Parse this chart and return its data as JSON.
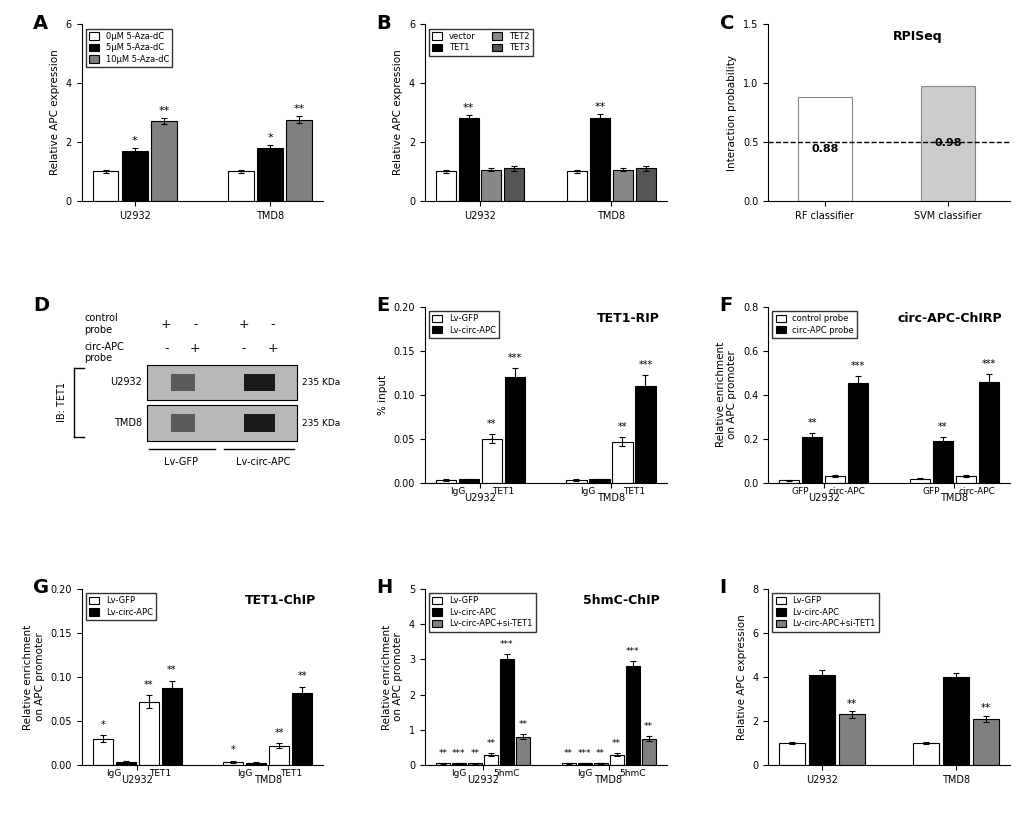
{
  "panelA": {
    "title": "A",
    "ylabel": "Relative APC expression",
    "ylim": [
      0,
      6
    ],
    "yticks": [
      0,
      2,
      4,
      6
    ],
    "groups": [
      "U2932",
      "TMD8"
    ],
    "categories": [
      "0μM 5-Aza-dC",
      "5μM 5-Aza-dC",
      "10μM 5-Aza-dC"
    ],
    "colors": [
      "white",
      "black",
      "#808080"
    ],
    "edgecolor": "black",
    "values": [
      [
        1.0,
        1.7,
        2.7
      ],
      [
        1.0,
        1.8,
        2.75
      ]
    ],
    "errors": [
      [
        0.05,
        0.08,
        0.1
      ],
      [
        0.05,
        0.1,
        0.12
      ]
    ],
    "sig": [
      [
        "",
        "*",
        "**"
      ],
      [
        "",
        "*",
        "**"
      ]
    ]
  },
  "panelB": {
    "title": "B",
    "ylabel": "Relative APC expression",
    "ylim": [
      0,
      6
    ],
    "yticks": [
      0,
      2,
      4,
      6
    ],
    "groups": [
      "U2932",
      "TMD8"
    ],
    "categories": [
      "vector",
      "TET1",
      "TET2",
      "TET3"
    ],
    "colors": [
      "white",
      "black",
      "#888888",
      "#555555"
    ],
    "edgecolor": "black",
    "values": [
      [
        1.0,
        2.8,
        1.05,
        1.1
      ],
      [
        1.0,
        2.8,
        1.05,
        1.1
      ]
    ],
    "errors": [
      [
        0.05,
        0.12,
        0.05,
        0.07
      ],
      [
        0.05,
        0.15,
        0.05,
        0.07
      ]
    ],
    "sig": [
      [
        "",
        "**",
        "",
        ""
      ],
      [
        "",
        "**",
        "",
        ""
      ]
    ]
  },
  "panelC": {
    "title": "C",
    "panel_title": "RPISeq",
    "ylabel": "Interaction probability",
    "ylim": [
      0.0,
      1.5
    ],
    "yticks": [
      0.0,
      0.5,
      1.0,
      1.5
    ],
    "categories": [
      "RF classifier",
      "SVM classifier"
    ],
    "colors": [
      "white",
      "#cccccc"
    ],
    "edgecolor": "#888888",
    "values": [
      0.88,
      0.98
    ],
    "labels": [
      "0.88",
      "0.98"
    ],
    "dashed_line": 0.5
  },
  "panelD": {
    "title": "D",
    "row1_label": "control\nprobe",
    "row2_label": "circ-APC\nprobe",
    "col_symbols_row1": [
      "+",
      "-",
      "+",
      "-"
    ],
    "col_symbols_row2": [
      "-",
      "+",
      "-",
      "+"
    ],
    "cell_line_labels": [
      "U2932",
      "TMD8"
    ],
    "kda_label": "235 KDa",
    "bottom_labels": [
      "Lv-GFP",
      "Lv-circ-APC"
    ],
    "ib_label": "IB: TET1",
    "gel_color": "#b8b8b8",
    "band_color": "#1a1a1a",
    "band_light_color": "#5a5a5a"
  },
  "panelE": {
    "title": "E",
    "panel_title": "TET1-RIP",
    "ylabel": "% input",
    "ylim": [
      0,
      0.2
    ],
    "yticks": [
      0,
      0.05,
      0.1,
      0.15,
      0.2
    ],
    "groups": [
      "U2932",
      "TMD8"
    ],
    "categories": [
      "IgG",
      "TET1"
    ],
    "white_values": [
      [
        0.003,
        0.05
      ],
      [
        0.003,
        0.047
      ]
    ],
    "white_errors": [
      [
        0.001,
        0.005
      ],
      [
        0.001,
        0.005
      ]
    ],
    "black_values": [
      [
        0.004,
        0.12
      ],
      [
        0.004,
        0.11
      ]
    ],
    "black_errors": [
      [
        0.001,
        0.01
      ],
      [
        0.001,
        0.012
      ]
    ],
    "sig_white": [
      [
        "",
        "**"
      ],
      [
        "",
        "**"
      ]
    ],
    "sig_black": [
      [
        "",
        "***"
      ],
      [
        "",
        "***"
      ]
    ],
    "legend": [
      "Lv-GFP",
      "Lv-circ-APC"
    ]
  },
  "panelF": {
    "title": "F",
    "panel_title": "circ-APC-ChIRP",
    "ylabel": "Relative enrichment\non APC promoter",
    "ylim": [
      0,
      0.8
    ],
    "yticks": [
      0,
      0.2,
      0.4,
      0.6,
      0.8
    ],
    "groups": [
      "U2932",
      "TMD8"
    ],
    "categories": [
      "GFP",
      "circ-APC"
    ],
    "white_values": [
      [
        0.012,
        0.033
      ],
      [
        0.02,
        0.033
      ]
    ],
    "white_errors": [
      [
        0.003,
        0.005
      ],
      [
        0.004,
        0.004
      ]
    ],
    "black_values": [
      [
        0.21,
        0.455
      ],
      [
        0.19,
        0.46
      ]
    ],
    "black_errors": [
      [
        0.015,
        0.03
      ],
      [
        0.018,
        0.035
      ]
    ],
    "sig_white": [
      [
        "",
        ""
      ],
      [
        "",
        ""
      ]
    ],
    "sig_black": [
      [
        "**",
        "***"
      ],
      [
        "**",
        "***"
      ]
    ],
    "legend": [
      "control probe",
      "circ-APC probe"
    ]
  },
  "panelG": {
    "title": "G",
    "panel_title": "TET1-ChIP",
    "ylabel": "Relative enrichment\non APC promoter",
    "ylim": [
      0,
      0.2
    ],
    "yticks": [
      0,
      0.05,
      0.1,
      0.15,
      0.2
    ],
    "groups": [
      "U2932",
      "TMD8"
    ],
    "categories": [
      "IgG",
      "TET1"
    ],
    "white_values": [
      [
        0.03,
        0.072
      ],
      [
        0.004,
        0.022
      ]
    ],
    "white_errors": [
      [
        0.004,
        0.007
      ],
      [
        0.001,
        0.003
      ]
    ],
    "black_values": [
      [
        0.004,
        0.088
      ],
      [
        0.003,
        0.082
      ]
    ],
    "black_errors": [
      [
        0.001,
        0.008
      ],
      [
        0.001,
        0.007
      ]
    ],
    "sig_white": [
      [
        "*",
        "**"
      ],
      [
        "*",
        "**"
      ]
    ],
    "sig_black": [
      [
        "",
        "**"
      ],
      [
        "",
        "**"
      ]
    ],
    "legend": [
      "Lv-GFP",
      "Lv-circ-APC"
    ]
  },
  "panelH": {
    "title": "H",
    "panel_title": "5hmC-ChIP",
    "ylabel": "Relative enrichment\non APC promoter",
    "ylim": [
      0,
      5
    ],
    "yticks": [
      0,
      1,
      2,
      3,
      4,
      5
    ],
    "groups": [
      "U2932",
      "TMD8"
    ],
    "categories": [
      "IgG",
      "5hmC"
    ],
    "white_values": [
      [
        0.05,
        0.3
      ],
      [
        0.05,
        0.3
      ]
    ],
    "white_errors": [
      [
        0.01,
        0.04
      ],
      [
        0.01,
        0.04
      ]
    ],
    "black_values": [
      [
        0.05,
        3.0
      ],
      [
        0.05,
        2.8
      ]
    ],
    "black_errors": [
      [
        0.01,
        0.15
      ],
      [
        0.01,
        0.15
      ]
    ],
    "gray_values": [
      [
        0.05,
        0.8
      ],
      [
        0.05,
        0.75
      ]
    ],
    "gray_errors": [
      [
        0.01,
        0.07
      ],
      [
        0.01,
        0.07
      ]
    ],
    "sig_white": [
      [
        "**",
        "**"
      ],
      [
        "**",
        "**"
      ]
    ],
    "sig_black": [
      [
        "***",
        "***"
      ],
      [
        "***",
        "***"
      ]
    ],
    "sig_gray": [
      [
        "**",
        "**"
      ],
      [
        "**",
        "**"
      ]
    ],
    "legend": [
      "Lv-GFP",
      "Lv-circ-APC",
      "Lv-circ-APC+si-TET1"
    ]
  },
  "panelI": {
    "title": "I",
    "ylabel": "Relative APC expression",
    "ylim": [
      0,
      8
    ],
    "yticks": [
      0,
      2,
      4,
      6,
      8
    ],
    "groups": [
      "U2932",
      "TMD8"
    ],
    "categories": [
      "Lv-GFP",
      "Lv-circ-APC",
      "Lv-circ-APC+si-TET1"
    ],
    "colors": [
      "white",
      "black",
      "#808080"
    ],
    "edgecolor": "black",
    "values": [
      [
        1.0,
        4.1,
        2.3
      ],
      [
        1.0,
        4.0,
        2.1
      ]
    ],
    "errors": [
      [
        0.05,
        0.2,
        0.15
      ],
      [
        0.05,
        0.2,
        0.15
      ]
    ],
    "sig": [
      [
        "",
        "",
        "**"
      ],
      [
        "",
        "",
        "**"
      ]
    ]
  }
}
